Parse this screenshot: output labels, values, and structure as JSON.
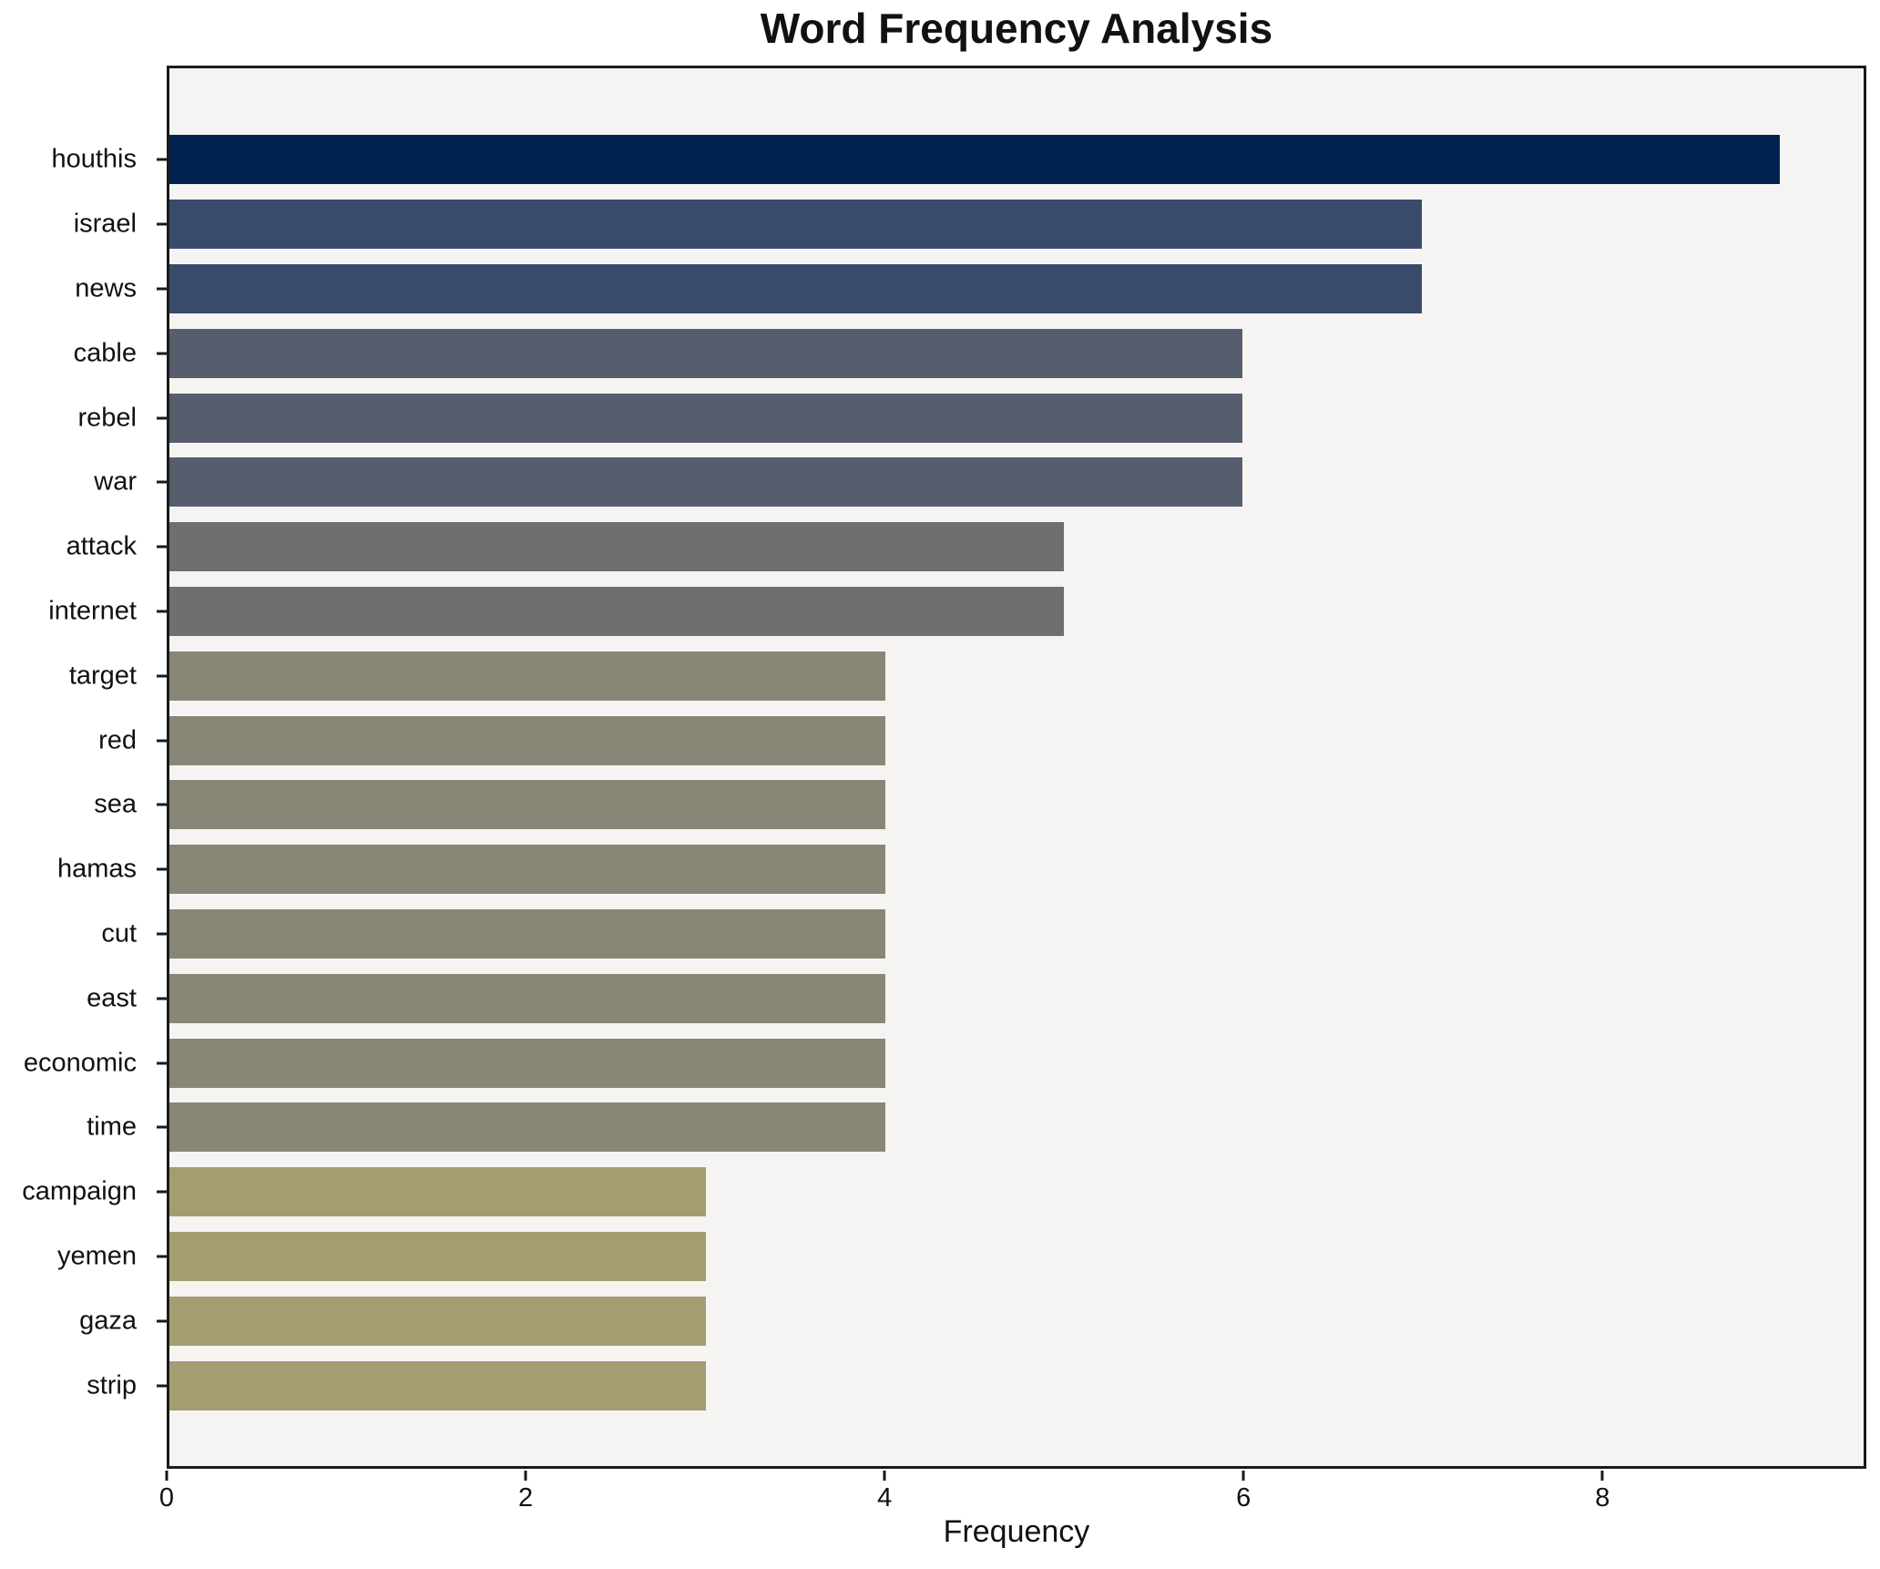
{
  "figure": {
    "background": "#ffffff",
    "plot_background": "#f5f4f2",
    "spine_color": "#1a1a1a",
    "text_color": "#111111"
  },
  "chart_data": {
    "type": "bar",
    "orientation": "horizontal",
    "title": "Word Frequency Analysis",
    "xlabel": "Frequency",
    "ylabel": "",
    "categories": [
      "houthis",
      "israel",
      "news",
      "cable",
      "rebel",
      "war",
      "attack",
      "internet",
      "target",
      "red",
      "sea",
      "hamas",
      "cut",
      "east",
      "economic",
      "time",
      "campaign",
      "yemen",
      "gaza",
      "strip"
    ],
    "values": [
      9,
      7,
      7,
      6,
      6,
      6,
      5,
      5,
      4,
      4,
      4,
      4,
      4,
      4,
      4,
      4,
      3,
      3,
      3,
      3
    ],
    "bar_colors": [
      "#00224e",
      "#3a4a6b",
      "#3a4a6b",
      "#565d6d",
      "#565d6d",
      "#565d6d",
      "#6f6f70",
      "#6f6f70",
      "#8a8675",
      "#8a8675",
      "#8a8675",
      "#8a8675",
      "#8a8675",
      "#8a8675",
      "#8a8675",
      "#8a8675",
      "#a69c72",
      "#a69c72",
      "#a69c72",
      "#a69c72"
    ],
    "xticks": [
      0,
      2,
      4,
      6,
      8
    ],
    "xlim": [
      0,
      9.47
    ],
    "grid": false,
    "legend": null
  }
}
